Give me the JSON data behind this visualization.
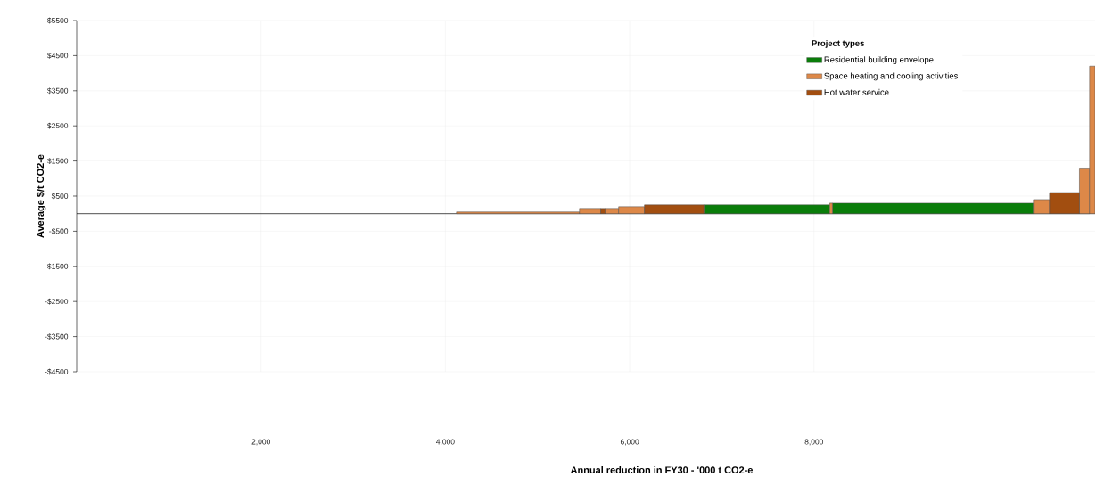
{
  "chart_data": {
    "type": "histogram",
    "xlabel": "Annual reduction in FY30 - '000 t CO2-e",
    "ylabel": "Average $/t CO2-e",
    "legend_title": "Project types",
    "legend": "top right",
    "grid": true,
    "bins": [
      4120,
      5455,
      5685,
      5735,
      5880,
      6160,
      6805,
      8170,
      8200,
      10380,
      10555,
      10880,
      10990,
      11050
    ],
    "series": [
      {
        "name": "Residential building envelope",
        "color": "#0a7d0a",
        "values": [
          null,
          null,
          null,
          null,
          null,
          null,
          250,
          null,
          300,
          null,
          null,
          null,
          null
        ]
      },
      {
        "name": "Space heating and cooling activities",
        "color": "#dd8848",
        "values": [
          50,
          150,
          null,
          150,
          200,
          null,
          null,
          300,
          null,
          400,
          null,
          1300,
          4200
        ]
      },
      {
        "name": "Hot water service",
        "color": "#a24e10",
        "values": [
          null,
          null,
          150,
          null,
          null,
          250,
          null,
          null,
          null,
          null,
          600,
          null,
          null
        ]
      }
    ],
    "xlim": [
      0,
      11050
    ],
    "ylim": [
      -4500,
      5500
    ],
    "xticks": [
      {
        "value": 2000,
        "label": "2,000"
      },
      {
        "value": 4000,
        "label": "4,000"
      },
      {
        "value": 6000,
        "label": "6,000"
      },
      {
        "value": 8000,
        "label": "8,000"
      }
    ],
    "yticks": [
      {
        "value": 5500,
        "label": "$5500"
      },
      {
        "value": 4500,
        "label": "$4500"
      },
      {
        "value": 3500,
        "label": "$3500"
      },
      {
        "value": 2500,
        "label": "$2500"
      },
      {
        "value": 1500,
        "label": "$1500"
      },
      {
        "value": 500,
        "label": "$500"
      },
      {
        "value": -500,
        "label": "-$500"
      },
      {
        "value": -1500,
        "label": "-$1500"
      },
      {
        "value": -2500,
        "label": "-$2500"
      },
      {
        "value": -3500,
        "label": "-$3500"
      },
      {
        "value": -4500,
        "label": "-$4500"
      }
    ]
  }
}
